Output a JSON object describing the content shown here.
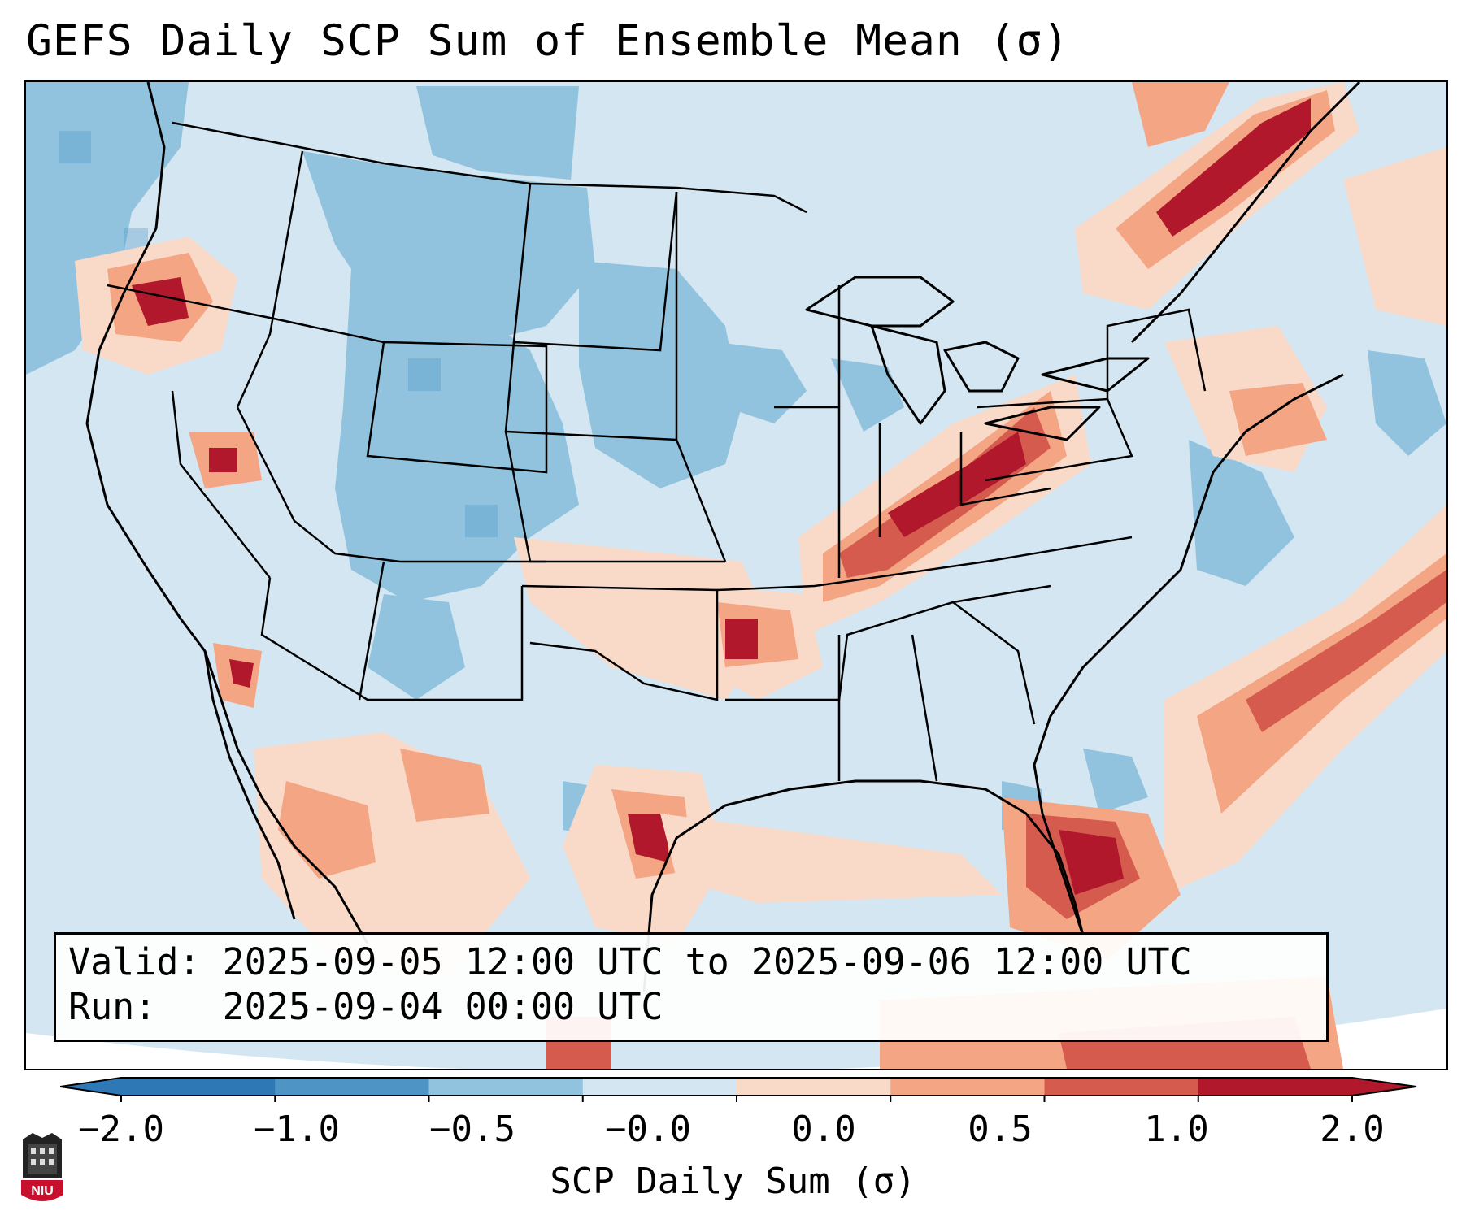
{
  "title": "GEFS Daily SCP Sum of Ensemble Mean (σ)",
  "info": {
    "valid_label": "Valid:",
    "valid_text": "2025-09-05 12:00 UTC to 2025-09-06 12:00 UTC",
    "run_label": "Run:",
    "run_text": "2025-09-04 00:00 UTC"
  },
  "colorbar": {
    "label": "SCP Daily Sum (σ)",
    "tick_labels": [
      "−2.0",
      "−1.0",
      "−0.5",
      "−0.0",
      "0.0",
      "0.5",
      "1.0",
      "2.0"
    ],
    "colors": [
      "#2f78b6",
      "#4e95c6",
      "#91c3de",
      "#d4e6f1",
      "#f9dac9",
      "#f3a584",
      "#d55b4e",
      "#b2182b"
    ]
  },
  "logo": {
    "text": "NIU"
  },
  "palette": {
    "strong_negative": "#4e95c6",
    "weak_negative": "#91c3de",
    "neutral_negative": "#d4e6f1",
    "weak_positive": "#f9dac9",
    "moderate_positive": "#f3a584",
    "strong_positive": "#d55b4e",
    "extreme_positive": "#b2182b"
  }
}
